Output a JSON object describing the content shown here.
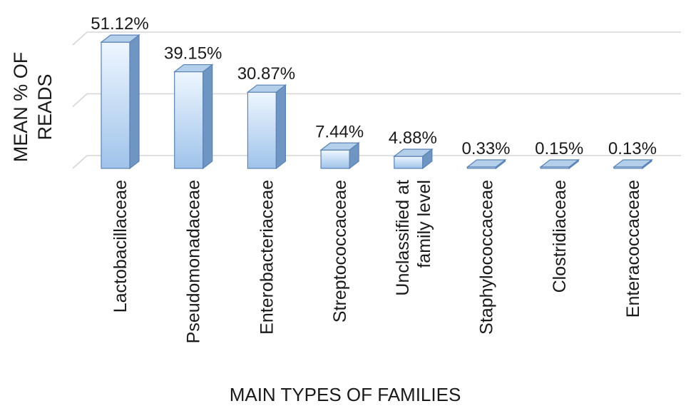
{
  "chart_data": {
    "type": "bar",
    "style": "3d-column",
    "categories": [
      "Lactobacillaceae",
      "Pseudomonadaceae",
      "Enterobacteriaceae",
      "Streptococcaceae",
      "Unclassified at family level",
      "Staphylococcaceae",
      "Clostridiaceae",
      "Enteracoccaceae"
    ],
    "values": [
      51.12,
      39.15,
      30.87,
      7.44,
      4.88,
      0.33,
      0.15,
      0.13
    ],
    "data_labels": [
      "51.12%",
      "39.15%",
      "30.87%",
      "7.44%",
      "4.88%",
      "0.33%",
      "0.15%",
      "0.13%"
    ],
    "ylabel": "MEAN % OF READS",
    "xlabel": "MAIN TYPES OF FAMILIES",
    "ylim": [
      0,
      75
    ],
    "grid": true,
    "legend": "none",
    "colors": {
      "bar_top": "#b4cfe9",
      "bar_front_light": "#eef6ff",
      "bar_front_dark": "#9fc3ea",
      "bar_side": "#6f95c2",
      "bar_edge": "#5b82b5",
      "grid": "#d6d6d6",
      "text": "#1a1a1a"
    }
  }
}
